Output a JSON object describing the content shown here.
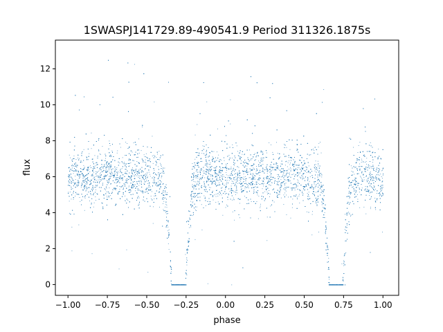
{
  "chart_data": {
    "type": "scatter",
    "title": "1SWASPJ141729.89-490541.9 Period 311326.1875s",
    "xlabel": "phase",
    "ylabel": "flux",
    "xlim": [
      -1.08,
      1.1
    ],
    "ylim": [
      -0.6,
      13.6
    ],
    "x_ticks": [
      -1.0,
      -0.75,
      -0.5,
      -0.25,
      0.0,
      0.25,
      0.5,
      0.75,
      1.0
    ],
    "x_tick_labels": [
      "−1.00",
      "−0.75",
      "−0.50",
      "−0.25",
      "0.00",
      "0.25",
      "0.50",
      "0.75",
      "1.00"
    ],
    "y_ticks": [
      0,
      2,
      4,
      6,
      8,
      10,
      12
    ],
    "y_tick_labels": [
      "0",
      "2",
      "4",
      "6",
      "8",
      "10",
      "12"
    ],
    "grid": false,
    "marker_color": "#1f77b4",
    "series": [
      {
        "phase_range": [
          -1.0,
          1.0
        ],
        "period_in_phase": 1.0,
        "baseline_flux": 6.0,
        "baseline_scatter": 0.8,
        "primary_eclipse": {
          "center_phase": -0.3,
          "min_flux": 0.2,
          "half_width": 0.07
        },
        "secondary_eclipse": {
          "center_phase": 0.7,
          "min_flux": 0.2,
          "half_width": 0.07
        },
        "flux_max_observed": 13.2,
        "flux_min_observed": 0.0
      }
    ]
  }
}
